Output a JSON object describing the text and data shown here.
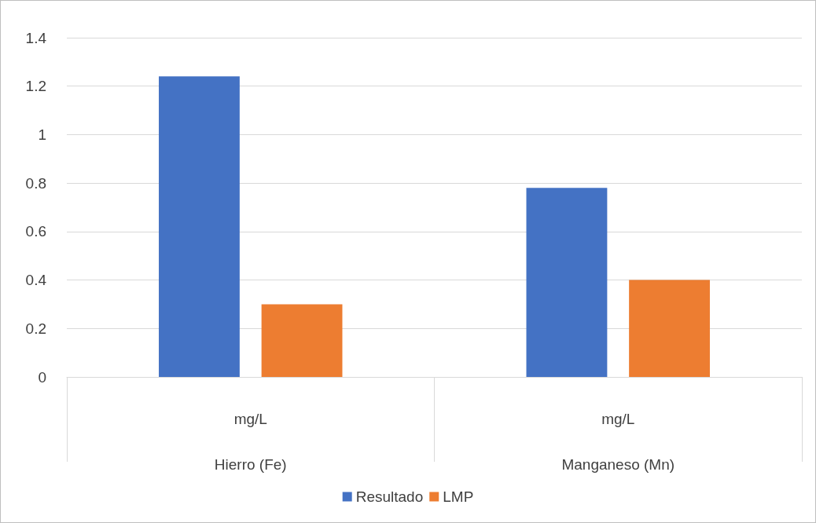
{
  "chart_data": {
    "type": "bar",
    "categories": [
      "mg/L\nHierro (Fe)",
      "mg/L\nManganeso (Mn)"
    ],
    "series": [
      {
        "name": "Resultado",
        "color": "#4472c4",
        "values": [
          1.24,
          0.78
        ]
      },
      {
        "name": "LMP",
        "color": "#ed7d31",
        "values": [
          0.3,
          0.4
        ]
      }
    ],
    "ylim": [
      0,
      1.4
    ],
    "yticks": [
      0,
      0.2,
      0.4,
      0.6,
      0.8,
      1,
      1.2,
      1.4
    ],
    "grid": "y",
    "legend": "bottom"
  }
}
